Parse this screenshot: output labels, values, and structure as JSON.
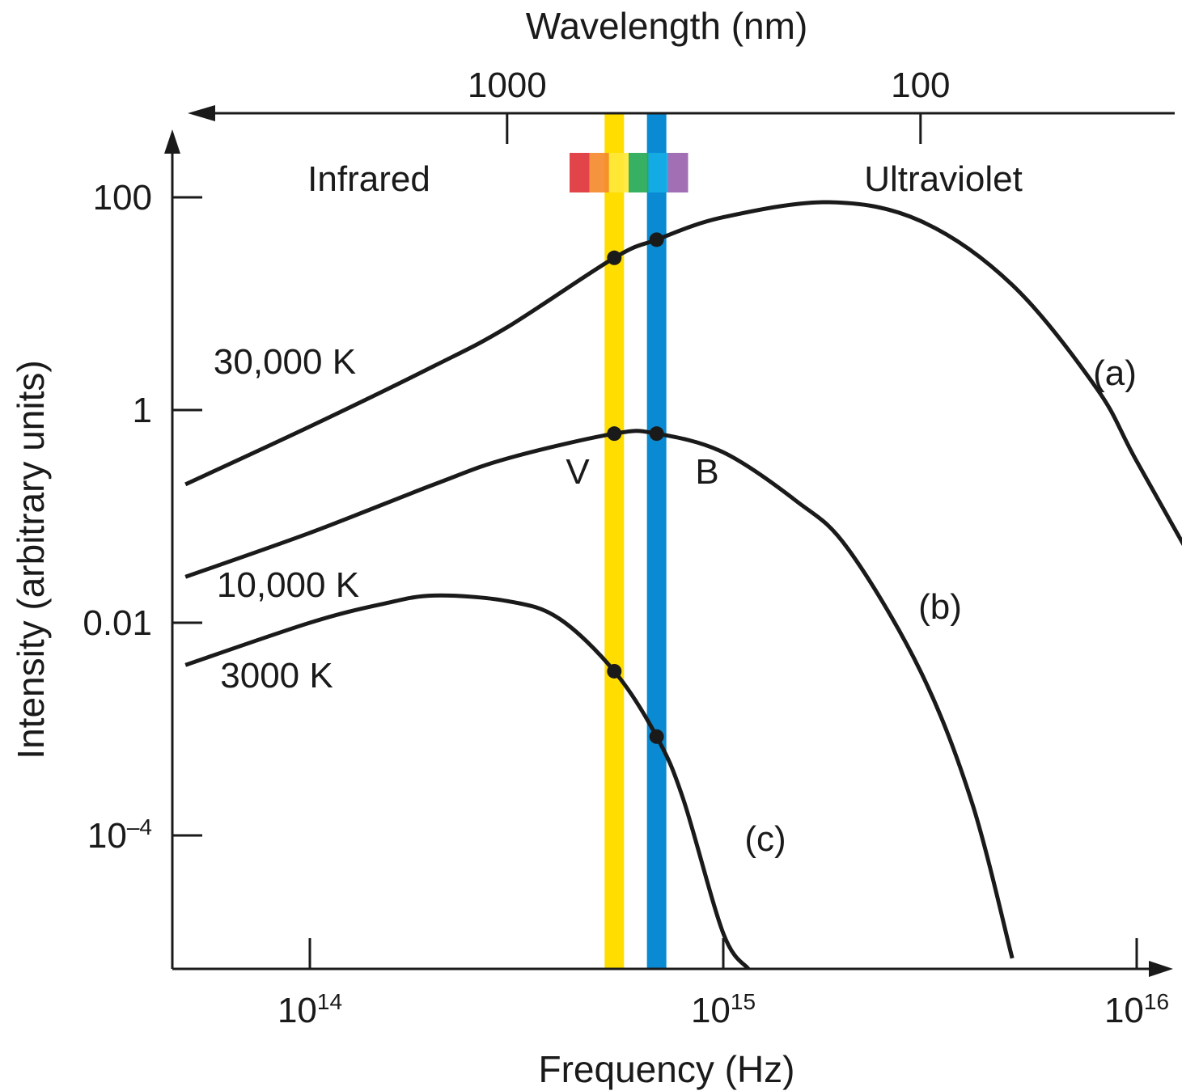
{
  "chart_data": {
    "type": "line",
    "xlabel": "Frequency (Hz)",
    "ylabel": "Intensity (arbitrary units)",
    "top_axis_label": "Wavelength (nm)",
    "x_scale": "log",
    "y_scale": "log",
    "xlim": [
      50000000000000,
      17000000000000000
    ],
    "ylim": [
      1e-06,
      100000
    ],
    "x_ticks": [
      {
        "value": 100000000000000,
        "base": "10",
        "exp": "14"
      },
      {
        "value": 1000000000000000,
        "base": "10",
        "exp": "15"
      },
      {
        "value": 10000000000000000,
        "base": "10",
        "exp": "16"
      }
    ],
    "y_ticks": [
      {
        "value": 100,
        "label": "100",
        "base": "",
        "exp": ""
      },
      {
        "value": 1,
        "label": "1",
        "base": "",
        "exp": ""
      },
      {
        "value": 0.01,
        "label": "0.01",
        "base": "",
        "exp": ""
      },
      {
        "value": 0.0001,
        "label": "",
        "base": "10",
        "exp": "–4"
      }
    ],
    "top_ticks": [
      {
        "label": "1000",
        "frequency": 300000000000000
      },
      {
        "label": "100",
        "frequency": 3000000000000000
      }
    ],
    "regions": {
      "infrared": "Infrared",
      "ultraviolet": "Ultraviolet"
    },
    "filters": [
      {
        "label": "V",
        "frequency": 545000000000000,
        "color": "#FFDD00"
      },
      {
        "label": "B",
        "frequency": 690000000000000,
        "color": "#0A8AD2"
      }
    ],
    "spectrum_colors": [
      "#E0353A",
      "#F58A2E",
      "#FFE83A",
      "#26A956",
      "#16ACE4",
      "#9A63AF"
    ],
    "spectrum_range": [
      420000000000000,
      800000000000000
    ],
    "series": [
      {
        "name": "30,000 K",
        "letter": "(a)",
        "x": [
          50000000000000,
          100000000000000,
          200000000000000,
          300000000000000,
          545000000000000,
          690000000000000,
          1000000000000000,
          1800000000000000,
          3000000000000000,
          5000000000000000,
          8000000000000000,
          10000000000000000,
          15000000000000000
        ],
        "y": [
          0.2,
          0.7,
          2.6,
          6,
          27,
          40,
          65,
          90,
          60,
          15,
          1.6,
          0.33,
          0.02
        ]
      },
      {
        "name": "10,000 K",
        "letter": "(b)",
        "x": [
          50000000000000,
          100000000000000,
          200000000000000,
          300000000000000,
          545000000000000,
          690000000000000,
          1000000000000000,
          1500000000000000,
          2000000000000000,
          3000000000000000,
          4000000000000000,
          5000000000000000
        ],
        "y": [
          0.027,
          0.07,
          0.2,
          0.35,
          0.6,
          0.6,
          0.4,
          0.14,
          0.05,
          0.0035,
          0.0002,
          7e-06
        ]
      },
      {
        "name": "3000 K",
        "letter": "(c)",
        "x": [
          50000000000000,
          100000000000000,
          150000000000000,
          200000000000000,
          300000000000000,
          400000000000000,
          545000000000000,
          690000000000000,
          800000000000000,
          1000000000000000,
          1150000000000000
        ],
        "y": [
          0.004,
          0.01,
          0.015,
          0.018,
          0.016,
          0.011,
          0.0035,
          0.00085,
          0.00022,
          1.2e-05,
          7e-07
        ]
      }
    ],
    "markers": [
      {
        "series": "30,000 K",
        "x": 545000000000000,
        "y": 27
      },
      {
        "series": "30,000 K",
        "x": 690000000000000,
        "y": 40
      },
      {
        "series": "10,000 K",
        "x": 545000000000000,
        "y": 0.6
      },
      {
        "series": "10,000 K",
        "x": 690000000000000,
        "y": 0.6
      },
      {
        "series": "3000 K",
        "x": 545000000000000,
        "y": 0.0035
      },
      {
        "series": "3000 K",
        "x": 690000000000000,
        "y": 0.00085
      }
    ]
  }
}
